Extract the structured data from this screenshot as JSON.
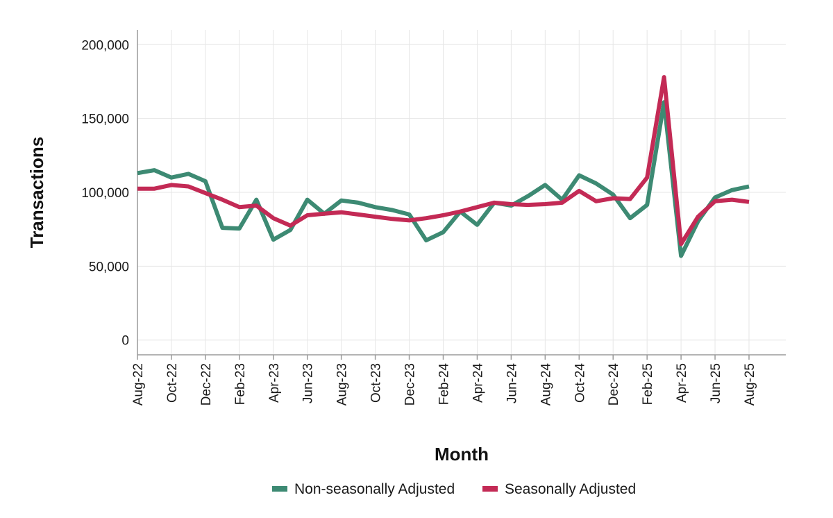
{
  "chart_data": {
    "type": "line",
    "title": "",
    "xlabel": "Month",
    "ylabel": "Transactions",
    "ylim": [
      -10000,
      210000
    ],
    "yticks": [
      0,
      50000,
      100000,
      150000,
      200000
    ],
    "ytick_labels": [
      "0",
      "50,000",
      "100,000",
      "150,000",
      "200,000"
    ],
    "grid": true,
    "legend_position": "bottom",
    "x": [
      "Aug-22",
      "Sep-22",
      "Oct-22",
      "Nov-22",
      "Dec-22",
      "Jan-23",
      "Feb-23",
      "Mar-23",
      "Apr-23",
      "May-23",
      "Jun-23",
      "Jul-23",
      "Aug-23",
      "Sep-23",
      "Oct-23",
      "Nov-23",
      "Dec-23",
      "Jan-24",
      "Feb-24",
      "Mar-24",
      "Apr-24",
      "May-24",
      "Jun-24",
      "Jul-24",
      "Aug-24",
      "Sep-24",
      "Oct-24",
      "Nov-24",
      "Dec-24",
      "Jan-25",
      "Feb-25",
      "Mar-25",
      "Apr-25",
      "May-25",
      "Jun-25",
      "Jul-25",
      "Aug-25"
    ],
    "xtick_labels": [
      "Aug-22",
      "Oct-22",
      "Dec-22",
      "Feb-23",
      "Apr-23",
      "Jun-23",
      "Aug-23",
      "Oct-23",
      "Dec-23",
      "Feb-24",
      "Apr-24",
      "Jun-24",
      "Aug-24",
      "Oct-24",
      "Dec-24",
      "Feb-25",
      "Apr-25",
      "Jun-25",
      "Aug-25"
    ],
    "series": [
      {
        "name": "Non-seasonally Adjusted",
        "color": "#3d8a73",
        "values": [
          113000,
          115000,
          110000,
          112500,
          107500,
          76000,
          75500,
          95000,
          68000,
          74500,
          95000,
          85500,
          94500,
          93000,
          90000,
          88000,
          85000,
          67500,
          73000,
          87000,
          78000,
          93000,
          91000,
          97500,
          105000,
          95000,
          111500,
          106000,
          98500,
          82500,
          91500,
          161000,
          57000,
          80500,
          96500,
          101500,
          104000
        ]
      },
      {
        "name": "Seasonally Adjusted",
        "color": "#c32a55",
        "values": [
          102500,
          102500,
          105000,
          104000,
          99500,
          95000,
          90000,
          91000,
          82500,
          77500,
          84500,
          85500,
          86500,
          85000,
          83500,
          82000,
          81000,
          82500,
          84500,
          87000,
          90000,
          93000,
          92000,
          91500,
          92000,
          93000,
          101000,
          94000,
          96000,
          95500,
          110000,
          178000,
          65000,
          83500,
          94000,
          95000,
          93500
        ]
      }
    ]
  }
}
